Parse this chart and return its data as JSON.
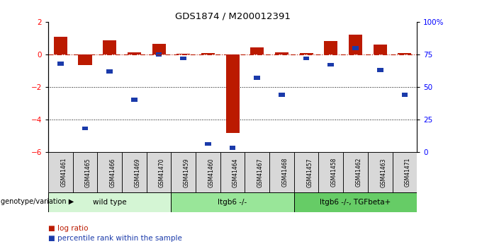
{
  "title": "GDS1874 / M200012391",
  "samples": [
    "GSM41461",
    "GSM41465",
    "GSM41466",
    "GSM41469",
    "GSM41470",
    "GSM41459",
    "GSM41460",
    "GSM41464",
    "GSM41467",
    "GSM41468",
    "GSM41457",
    "GSM41458",
    "GSM41462",
    "GSM41463",
    "GSM41471"
  ],
  "log_ratio": [
    1.1,
    -0.65,
    0.85,
    0.12,
    0.65,
    0.05,
    0.08,
    -4.85,
    0.45,
    0.12,
    0.1,
    0.82,
    1.2,
    0.6,
    0.1
  ],
  "percentile_rank": [
    68,
    18,
    62,
    40,
    75,
    72,
    6,
    3,
    57,
    44,
    72,
    67,
    80,
    63,
    44
  ],
  "groups": [
    {
      "label": "wild type",
      "start": 0,
      "end": 5,
      "color": "#d4f5d4"
    },
    {
      "label": "Itgb6 -/-",
      "start": 5,
      "end": 10,
      "color": "#99e699"
    },
    {
      "label": "Itgb6 -/-, TGFbeta+",
      "start": 10,
      "end": 15,
      "color": "#66cc66"
    }
  ],
  "bar_color_red": "#bb1a00",
  "bar_color_blue": "#1a3aaa",
  "ylim_left": [
    -6,
    2
  ],
  "ylim_right": [
    0,
    100
  ],
  "yticks_left": [
    -6,
    -4,
    -2,
    0,
    2
  ],
  "yticks_right": [
    0,
    25,
    50,
    75,
    100
  ],
  "ytick_labels_right": [
    "0",
    "25",
    "50",
    "75",
    "100%"
  ],
  "dotted_lines": [
    -2,
    -4
  ],
  "legend_log_ratio": "log ratio",
  "legend_percentile": "percentile rank within the sample",
  "genotype_label": "genotype/variation"
}
